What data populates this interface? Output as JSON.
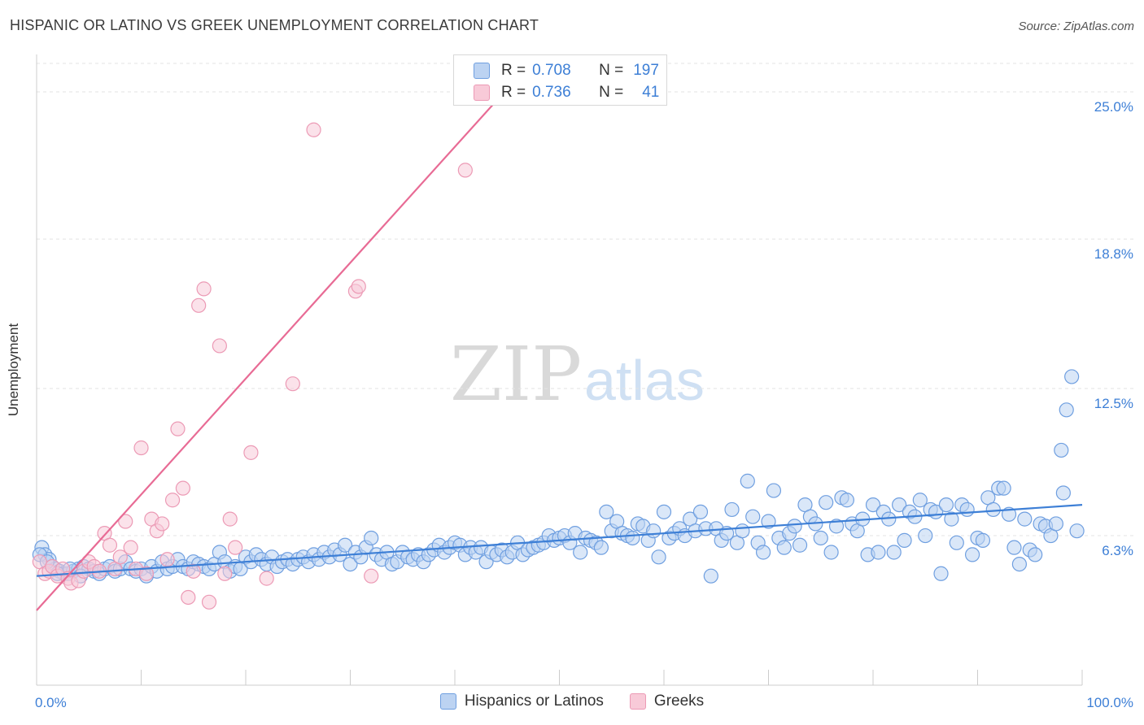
{
  "title": "HISPANIC OR LATINO VS GREEK UNEMPLOYMENT CORRELATION CHART",
  "source": "Source: ZipAtlas.com",
  "watermark": {
    "zip": "ZIP",
    "atlas": "atlas"
  },
  "colors": {
    "blue": "#3d7fd6",
    "blue_fill": "#bcd3f2",
    "blue_stroke": "#6f9fe0",
    "pink": "#e86b95",
    "pink_fill": "#f8cad8",
    "pink_stroke": "#ec9ab5",
    "axis_label": "#3d7fd6",
    "grid": "#e3e3e3"
  },
  "stats": {
    "blue": {
      "r_label": "R =",
      "r_value": "0.708",
      "n_label": "N =",
      "n_value": "197"
    },
    "pink": {
      "r_label": "R =",
      "r_value": "0.736",
      "n_label": "N =",
      "n_value": "41"
    }
  },
  "chart_data": {
    "type": "scatter",
    "title": "HISPANIC OR LATINO VS GREEK UNEMPLOYMENT CORRELATION CHART",
    "xlabel": "",
    "ylabel": "Unemployment",
    "xlim": [
      0,
      100
    ],
    "ylim": [
      0,
      26.2
    ],
    "x_tick_labels": [
      "0.0%",
      "100.0%"
    ],
    "y_ticks": [
      6.3,
      12.5,
      18.8,
      25.0
    ],
    "y_tick_labels": [
      "6.3%",
      "12.5%",
      "18.8%",
      "25.0%"
    ],
    "grid": true,
    "legend_position": "bottom-center",
    "series": [
      {
        "name": "Hispanics or Latinos",
        "color": "#3d7fd6",
        "trend": {
          "x": [
            0,
            100
          ],
          "y": [
            4.6,
            7.6
          ]
        },
        "points": [
          [
            0.5,
            5.8
          ],
          [
            0.8,
            5.5
          ],
          [
            1.2,
            5.3
          ],
          [
            1.5,
            5.0
          ],
          [
            1.8,
            4.9
          ],
          [
            2.2,
            4.8
          ],
          [
            2.6,
            4.7
          ],
          [
            3.0,
            4.7
          ],
          [
            3.5,
            4.8
          ],
          [
            4.0,
            4.9
          ],
          [
            4.5,
            5.0
          ],
          [
            5.0,
            4.9
          ],
          [
            5.5,
            4.8
          ],
          [
            6.0,
            4.7
          ],
          [
            6.5,
            4.9
          ],
          [
            7.0,
            5.0
          ],
          [
            7.5,
            4.8
          ],
          [
            8.0,
            4.9
          ],
          [
            8.5,
            5.2
          ],
          [
            9.0,
            4.9
          ],
          [
            9.5,
            4.8
          ],
          [
            10.0,
            4.9
          ],
          [
            10.5,
            4.6
          ],
          [
            11.0,
            5.0
          ],
          [
            11.5,
            4.8
          ],
          [
            12.0,
            5.2
          ],
          [
            12.5,
            4.9
          ],
          [
            13.0,
            5.0
          ],
          [
            13.5,
            5.3
          ],
          [
            14.0,
            5.0
          ],
          [
            14.5,
            4.9
          ],
          [
            15.0,
            5.2
          ],
          [
            15.5,
            5.1
          ],
          [
            16.0,
            5.0
          ],
          [
            16.5,
            4.9
          ],
          [
            17.0,
            5.1
          ],
          [
            17.5,
            5.6
          ],
          [
            18.0,
            5.2
          ],
          [
            18.5,
            4.8
          ],
          [
            19.0,
            5.0
          ],
          [
            19.5,
            4.9
          ],
          [
            20.0,
            5.4
          ],
          [
            20.5,
            5.2
          ],
          [
            21.0,
            5.5
          ],
          [
            21.5,
            5.3
          ],
          [
            22.0,
            5.1
          ],
          [
            22.5,
            5.4
          ],
          [
            23.0,
            5.0
          ],
          [
            23.5,
            5.2
          ],
          [
            24.0,
            5.3
          ],
          [
            24.5,
            5.1
          ],
          [
            25.0,
            5.3
          ],
          [
            25.5,
            5.4
          ],
          [
            26.0,
            5.2
          ],
          [
            26.5,
            5.5
          ],
          [
            27.0,
            5.3
          ],
          [
            27.5,
            5.6
          ],
          [
            28.0,
            5.4
          ],
          [
            28.5,
            5.7
          ],
          [
            29.0,
            5.5
          ],
          [
            29.5,
            5.9
          ],
          [
            30.0,
            5.1
          ],
          [
            30.5,
            5.6
          ],
          [
            31.0,
            5.4
          ],
          [
            31.5,
            5.8
          ],
          [
            32.0,
            6.2
          ],
          [
            32.5,
            5.5
          ],
          [
            33.0,
            5.3
          ],
          [
            33.5,
            5.6
          ],
          [
            34.0,
            5.1
          ],
          [
            34.5,
            5.2
          ],
          [
            35.0,
            5.6
          ],
          [
            35.5,
            5.4
          ],
          [
            36.0,
            5.3
          ],
          [
            36.5,
            5.5
          ],
          [
            37.0,
            5.2
          ],
          [
            37.5,
            5.5
          ],
          [
            38.0,
            5.7
          ],
          [
            38.5,
            5.9
          ],
          [
            39.0,
            5.6
          ],
          [
            39.5,
            5.8
          ],
          [
            40.0,
            6.0
          ],
          [
            40.5,
            5.9
          ],
          [
            41.0,
            5.5
          ],
          [
            41.5,
            5.8
          ],
          [
            42.0,
            5.6
          ],
          [
            42.5,
            5.8
          ],
          [
            43.0,
            5.2
          ],
          [
            43.5,
            5.6
          ],
          [
            44.0,
            5.5
          ],
          [
            44.5,
            5.7
          ],
          [
            45.0,
            5.4
          ],
          [
            45.5,
            5.6
          ],
          [
            46.0,
            6.0
          ],
          [
            46.5,
            5.5
          ],
          [
            47.0,
            5.7
          ],
          [
            47.5,
            5.8
          ],
          [
            48.0,
            5.9
          ],
          [
            48.5,
            6.0
          ],
          [
            49.0,
            6.3
          ],
          [
            49.5,
            6.1
          ],
          [
            50.0,
            6.2
          ],
          [
            50.5,
            6.3
          ],
          [
            51.0,
            6.0
          ],
          [
            51.5,
            6.4
          ],
          [
            52.0,
            5.6
          ],
          [
            52.5,
            6.2
          ],
          [
            53.0,
            6.1
          ],
          [
            53.5,
            6.0
          ],
          [
            54.0,
            5.8
          ],
          [
            54.5,
            7.3
          ],
          [
            55.0,
            6.5
          ],
          [
            55.5,
            6.9
          ],
          [
            56.0,
            6.4
          ],
          [
            56.5,
            6.3
          ],
          [
            57.0,
            6.2
          ],
          [
            57.5,
            6.8
          ],
          [
            58.0,
            6.7
          ],
          [
            58.5,
            6.1
          ],
          [
            59.0,
            6.5
          ],
          [
            59.5,
            5.4
          ],
          [
            60.0,
            7.3
          ],
          [
            60.5,
            6.2
          ],
          [
            61.0,
            6.4
          ],
          [
            61.5,
            6.6
          ],
          [
            62.0,
            6.3
          ],
          [
            62.5,
            7.0
          ],
          [
            63.0,
            6.5
          ],
          [
            63.5,
            7.3
          ],
          [
            64.0,
            6.6
          ],
          [
            64.5,
            4.6
          ],
          [
            65.0,
            6.6
          ],
          [
            65.5,
            6.1
          ],
          [
            66.0,
            6.4
          ],
          [
            66.5,
            7.4
          ],
          [
            67.0,
            6.0
          ],
          [
            67.5,
            6.5
          ],
          [
            68.0,
            8.6
          ],
          [
            68.5,
            7.1
          ],
          [
            69.0,
            6.0
          ],
          [
            69.5,
            5.6
          ],
          [
            70.0,
            6.9
          ],
          [
            70.5,
            8.2
          ],
          [
            71.0,
            6.2
          ],
          [
            71.5,
            5.8
          ],
          [
            72.0,
            6.4
          ],
          [
            72.5,
            6.7
          ],
          [
            73.0,
            5.9
          ],
          [
            73.5,
            7.6
          ],
          [
            74.0,
            7.1
          ],
          [
            74.5,
            6.8
          ],
          [
            75.0,
            6.2
          ],
          [
            75.5,
            7.7
          ],
          [
            76.0,
            5.6
          ],
          [
            76.5,
            6.7
          ],
          [
            77.0,
            7.9
          ],
          [
            77.5,
            7.8
          ],
          [
            78.0,
            6.8
          ],
          [
            78.5,
            6.5
          ],
          [
            79.0,
            7.0
          ],
          [
            79.5,
            5.5
          ],
          [
            80.0,
            7.6
          ],
          [
            80.5,
            5.6
          ],
          [
            81.0,
            7.3
          ],
          [
            81.5,
            7.0
          ],
          [
            82.0,
            5.6
          ],
          [
            82.5,
            7.6
          ],
          [
            83.0,
            6.1
          ],
          [
            83.5,
            7.3
          ],
          [
            84.0,
            7.1
          ],
          [
            84.5,
            7.8
          ],
          [
            85.0,
            6.3
          ],
          [
            85.5,
            7.4
          ],
          [
            86.0,
            7.3
          ],
          [
            86.5,
            4.7
          ],
          [
            87.0,
            7.6
          ],
          [
            87.5,
            7.0
          ],
          [
            88.0,
            6.0
          ],
          [
            88.5,
            7.6
          ],
          [
            89.0,
            7.4
          ],
          [
            89.5,
            5.5
          ],
          [
            90.0,
            6.2
          ],
          [
            90.5,
            6.1
          ],
          [
            91.0,
            7.9
          ],
          [
            91.5,
            7.4
          ],
          [
            92.0,
            8.3
          ],
          [
            92.5,
            8.3
          ],
          [
            93.0,
            7.2
          ],
          [
            93.5,
            5.8
          ],
          [
            94.0,
            5.1
          ],
          [
            94.5,
            7.0
          ],
          [
            95.0,
            5.7
          ],
          [
            95.5,
            5.5
          ],
          [
            96.0,
            6.8
          ],
          [
            96.5,
            6.7
          ],
          [
            97.0,
            6.3
          ],
          [
            97.5,
            6.8
          ],
          [
            98.0,
            9.9
          ],
          [
            98.5,
            11.6
          ],
          [
            99.0,
            13.0
          ],
          [
            98.2,
            8.1
          ],
          [
            99.5,
            6.5
          ],
          [
            0.3,
            5.5
          ],
          [
            1.0,
            5.2
          ],
          [
            2.0,
            4.7
          ],
          [
            3.2,
            4.9
          ],
          [
            4.2,
            4.6
          ]
        ]
      },
      {
        "name": "Greeks",
        "color": "#e86b95",
        "trend": {
          "x": [
            0,
            47.2
          ],
          "y": [
            3.15,
            26.2
          ]
        },
        "points": [
          [
            0.3,
            5.2
          ],
          [
            0.8,
            4.7
          ],
          [
            1.2,
            4.8
          ],
          [
            1.5,
            5.0
          ],
          [
            2.0,
            4.6
          ],
          [
            2.5,
            4.9
          ],
          [
            3.0,
            4.5
          ],
          [
            3.3,
            4.3
          ],
          [
            4.0,
            4.4
          ],
          [
            4.5,
            4.8
          ],
          [
            5.0,
            5.2
          ],
          [
            5.5,
            5.0
          ],
          [
            6.0,
            4.8
          ],
          [
            6.5,
            6.4
          ],
          [
            7.0,
            5.9
          ],
          [
            7.5,
            4.9
          ],
          [
            8.0,
            5.4
          ],
          [
            8.5,
            6.9
          ],
          [
            9.0,
            5.8
          ],
          [
            9.5,
            4.9
          ],
          [
            10.0,
            10.0
          ],
          [
            10.5,
            4.7
          ],
          [
            11.0,
            7.0
          ],
          [
            11.5,
            6.5
          ],
          [
            12.0,
            6.8
          ],
          [
            12.5,
            5.3
          ],
          [
            13.0,
            7.8
          ],
          [
            13.5,
            10.8
          ],
          [
            14.0,
            8.3
          ],
          [
            14.5,
            3.7
          ],
          [
            15.0,
            4.8
          ],
          [
            15.5,
            16.0
          ],
          [
            16.0,
            16.7
          ],
          [
            16.5,
            3.5
          ],
          [
            17.5,
            14.3
          ],
          [
            18.0,
            4.7
          ],
          [
            18.5,
            7.0
          ],
          [
            19.0,
            5.8
          ],
          [
            20.5,
            9.8
          ],
          [
            22.0,
            4.5
          ],
          [
            24.5,
            12.7
          ],
          [
            26.5,
            23.4
          ],
          [
            30.5,
            16.6
          ],
          [
            30.8,
            16.8
          ],
          [
            32.0,
            4.6
          ],
          [
            41.0,
            21.7
          ]
        ]
      }
    ]
  },
  "legend": {
    "items": [
      {
        "label": "Hispanics or Latinos"
      },
      {
        "label": "Greeks"
      }
    ]
  }
}
